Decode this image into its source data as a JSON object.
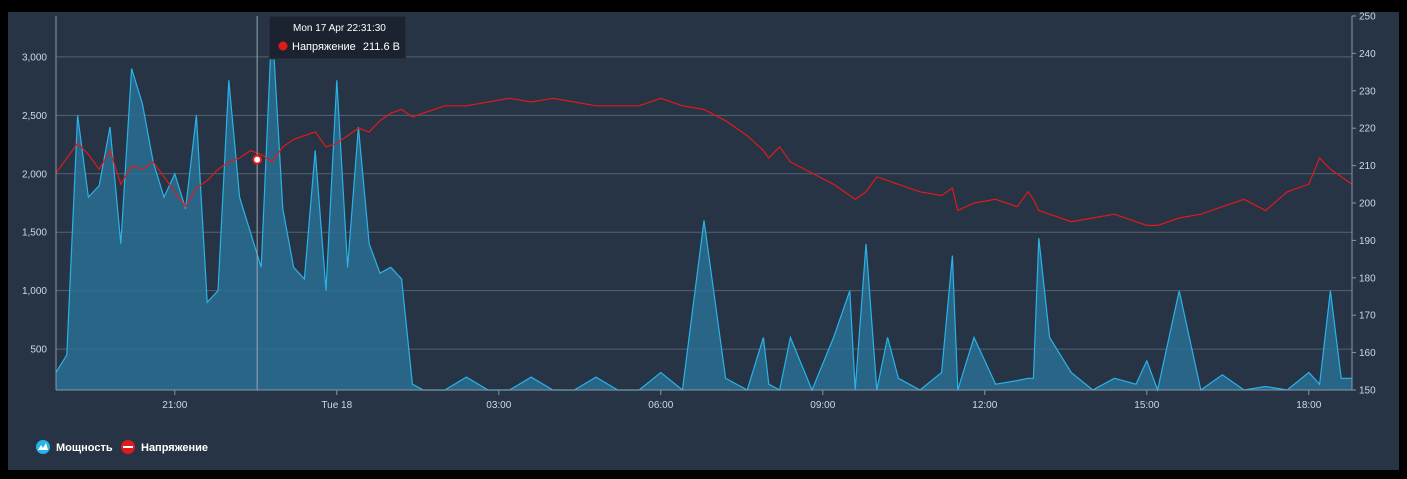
{
  "chart_data": {
    "type": "area",
    "colors": {
      "background": "#263445",
      "power": "#29b3e8",
      "power_fill": "#2a6f93",
      "voltage": "#e01a1a",
      "grid": "#556172"
    },
    "x_ticks": [
      {
        "label": "21:00",
        "hour": 21
      },
      {
        "label": "Tue 18",
        "hour": 24
      },
      {
        "label": "03:00",
        "hour": 27
      },
      {
        "label": "06:00",
        "hour": 30
      },
      {
        "label": "09:00",
        "hour": 33
      },
      {
        "label": "12:00",
        "hour": 36
      },
      {
        "label": "15:00",
        "hour": 39
      },
      {
        "label": "18:00",
        "hour": 42
      }
    ],
    "x_range_hours": [
      18.8,
      42.8
    ],
    "y_left": {
      "ticks": [
        500,
        1000,
        1500,
        2000,
        2500,
        3000
      ],
      "labels": [
        "500",
        "1,000",
        "1,500",
        "2,000",
        "2,500",
        "3,000"
      ],
      "range": [
        150,
        3350
      ]
    },
    "y_right": {
      "ticks": [
        150,
        160,
        170,
        180,
        190,
        200,
        210,
        220,
        230,
        240,
        250
      ],
      "labels": [
        "150",
        "160",
        "170",
        "180",
        "190",
        "200",
        "210",
        "220",
        "230",
        "240",
        "250"
      ],
      "range": [
        150,
        250
      ]
    },
    "series": [
      {
        "name": "Мощность",
        "axis": "left",
        "type": "area",
        "hours": [
          18.8,
          19.0,
          19.2,
          19.4,
          19.6,
          19.8,
          20.0,
          20.2,
          20.4,
          20.6,
          20.8,
          21.0,
          21.2,
          21.4,
          21.6,
          21.8,
          22.0,
          22.2,
          22.4,
          22.6,
          22.8,
          23.0,
          23.2,
          23.4,
          23.6,
          23.8,
          24.0,
          24.2,
          24.4,
          24.6,
          24.8,
          25.0,
          25.2,
          25.4,
          25.6,
          25.8,
          26.0,
          26.4,
          26.8,
          27.2,
          27.6,
          28.0,
          28.4,
          28.8,
          29.2,
          29.6,
          30.0,
          30.4,
          30.8,
          31.2,
          31.6,
          31.9,
          32.0,
          32.2,
          32.4,
          32.8,
          33.2,
          33.5,
          33.6,
          33.8,
          34.0,
          34.2,
          34.4,
          34.8,
          35.2,
          35.4,
          35.5,
          35.8,
          36.2,
          36.6,
          36.8,
          36.9,
          37.0,
          37.2,
          37.6,
          38.0,
          38.4,
          38.8,
          39.0,
          39.2,
          39.6,
          40.0,
          40.4,
          40.8,
          41.2,
          41.6,
          42.0,
          42.2,
          42.4,
          42.6,
          42.8
        ],
        "values": [
          300,
          450,
          2500,
          1800,
          1900,
          2400,
          1400,
          2900,
          2600,
          2100,
          1800,
          2000,
          1700,
          2500,
          900,
          1000,
          2800,
          1800,
          1500,
          1200,
          3300,
          1700,
          1200,
          1100,
          2200,
          1000,
          2800,
          1200,
          2400,
          1400,
          1150,
          1200,
          1100,
          200,
          150,
          150,
          150,
          260,
          150,
          150,
          260,
          150,
          150,
          260,
          150,
          150,
          300,
          150,
          1600,
          250,
          150,
          600,
          200,
          150,
          600,
          150,
          600,
          1000,
          150,
          1400,
          150,
          600,
          250,
          150,
          300,
          1300,
          150,
          600,
          200,
          230,
          250,
          250,
          1450,
          600,
          300,
          150,
          250,
          200,
          400,
          150,
          1000,
          150,
          280,
          150,
          180,
          150,
          300,
          200,
          1000,
          250,
          250
        ]
      },
      {
        "name": "Напряжение",
        "axis": "right",
        "type": "line",
        "hours": [
          18.8,
          19.0,
          19.2,
          19.4,
          19.6,
          19.8,
          20.0,
          20.2,
          20.4,
          20.6,
          20.8,
          21.0,
          21.2,
          21.4,
          21.6,
          21.8,
          22.0,
          22.2,
          22.4,
          22.6,
          22.8,
          23.0,
          23.2,
          23.4,
          23.6,
          23.8,
          24.0,
          24.2,
          24.4,
          24.6,
          24.8,
          25.0,
          25.2,
          25.4,
          25.6,
          25.8,
          26.0,
          26.4,
          26.8,
          27.2,
          27.6,
          28.0,
          28.4,
          28.8,
          29.2,
          29.6,
          30.0,
          30.4,
          30.8,
          31.2,
          31.6,
          31.9,
          32.0,
          32.2,
          32.4,
          32.8,
          33.2,
          33.5,
          33.6,
          33.8,
          34.0,
          34.2,
          34.4,
          34.8,
          35.2,
          35.4,
          35.5,
          35.8,
          36.2,
          36.6,
          36.8,
          36.9,
          37.0,
          37.2,
          37.6,
          38.0,
          38.4,
          38.8,
          39.0,
          39.2,
          39.6,
          40.0,
          40.4,
          40.8,
          41.2,
          41.6,
          42.0,
          42.2,
          42.4,
          42.6,
          42.8
        ],
        "values": [
          208,
          212,
          216,
          213,
          209,
          214,
          205,
          210,
          209,
          211,
          207,
          203,
          199,
          204,
          206,
          209,
          211,
          212,
          214,
          213,
          211,
          215,
          217,
          218,
          219,
          215,
          216,
          218,
          220,
          219,
          222,
          224,
          225,
          223,
          224,
          225,
          226,
          226,
          227,
          228,
          227,
          228,
          227,
          226,
          226,
          226,
          228,
          226,
          225,
          222,
          218,
          214,
          212,
          215,
          211,
          208,
          205,
          202,
          201,
          203,
          207,
          206,
          205,
          203,
          202,
          204,
          198,
          200,
          201,
          199,
          203,
          201,
          198,
          197,
          195,
          196,
          197,
          195,
          194,
          194,
          196,
          197,
          199,
          201,
          198,
          203,
          205,
          212,
          209,
          207,
          205
        ]
      }
    ]
  },
  "tooltip": {
    "time": "Mon 17 Apr 22:31:30",
    "series": "Напряжение",
    "value": "211.6 В",
    "hour": 22.525,
    "voltage": 211.6
  },
  "legend": {
    "power_label": "Мощность",
    "voltage_label": "Напряжение",
    "placement": "bottom-left"
  }
}
